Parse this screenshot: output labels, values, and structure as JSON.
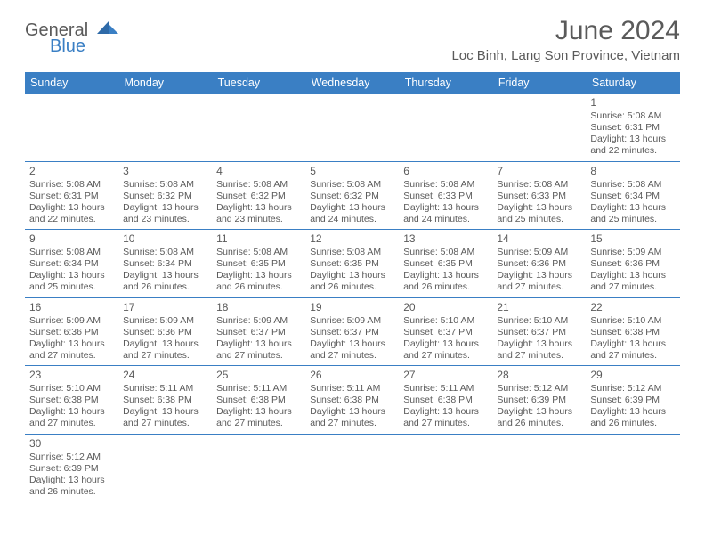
{
  "logo": {
    "text1": "General",
    "text2": "Blue"
  },
  "header": {
    "month_title": "June 2024",
    "location": "Loc Binh, Lang Son Province, Vietnam"
  },
  "colors": {
    "header_bg": "#3a7fc4",
    "text": "#5a5a5a",
    "page_bg": "#ffffff"
  },
  "weekdays": [
    "Sunday",
    "Monday",
    "Tuesday",
    "Wednesday",
    "Thursday",
    "Friday",
    "Saturday"
  ],
  "grid": [
    [
      null,
      null,
      null,
      null,
      null,
      null,
      {
        "n": "1",
        "sr": "Sunrise: 5:08 AM",
        "ss": "Sunset: 6:31 PM",
        "dl": "Daylight: 13 hours and 22 minutes."
      }
    ],
    [
      {
        "n": "2",
        "sr": "Sunrise: 5:08 AM",
        "ss": "Sunset: 6:31 PM",
        "dl": "Daylight: 13 hours and 22 minutes."
      },
      {
        "n": "3",
        "sr": "Sunrise: 5:08 AM",
        "ss": "Sunset: 6:32 PM",
        "dl": "Daylight: 13 hours and 23 minutes."
      },
      {
        "n": "4",
        "sr": "Sunrise: 5:08 AM",
        "ss": "Sunset: 6:32 PM",
        "dl": "Daylight: 13 hours and 23 minutes."
      },
      {
        "n": "5",
        "sr": "Sunrise: 5:08 AM",
        "ss": "Sunset: 6:32 PM",
        "dl": "Daylight: 13 hours and 24 minutes."
      },
      {
        "n": "6",
        "sr": "Sunrise: 5:08 AM",
        "ss": "Sunset: 6:33 PM",
        "dl": "Daylight: 13 hours and 24 minutes."
      },
      {
        "n": "7",
        "sr": "Sunrise: 5:08 AM",
        "ss": "Sunset: 6:33 PM",
        "dl": "Daylight: 13 hours and 25 minutes."
      },
      {
        "n": "8",
        "sr": "Sunrise: 5:08 AM",
        "ss": "Sunset: 6:34 PM",
        "dl": "Daylight: 13 hours and 25 minutes."
      }
    ],
    [
      {
        "n": "9",
        "sr": "Sunrise: 5:08 AM",
        "ss": "Sunset: 6:34 PM",
        "dl": "Daylight: 13 hours and 25 minutes."
      },
      {
        "n": "10",
        "sr": "Sunrise: 5:08 AM",
        "ss": "Sunset: 6:34 PM",
        "dl": "Daylight: 13 hours and 26 minutes."
      },
      {
        "n": "11",
        "sr": "Sunrise: 5:08 AM",
        "ss": "Sunset: 6:35 PM",
        "dl": "Daylight: 13 hours and 26 minutes."
      },
      {
        "n": "12",
        "sr": "Sunrise: 5:08 AM",
        "ss": "Sunset: 6:35 PM",
        "dl": "Daylight: 13 hours and 26 minutes."
      },
      {
        "n": "13",
        "sr": "Sunrise: 5:08 AM",
        "ss": "Sunset: 6:35 PM",
        "dl": "Daylight: 13 hours and 26 minutes."
      },
      {
        "n": "14",
        "sr": "Sunrise: 5:09 AM",
        "ss": "Sunset: 6:36 PM",
        "dl": "Daylight: 13 hours and 27 minutes."
      },
      {
        "n": "15",
        "sr": "Sunrise: 5:09 AM",
        "ss": "Sunset: 6:36 PM",
        "dl": "Daylight: 13 hours and 27 minutes."
      }
    ],
    [
      {
        "n": "16",
        "sr": "Sunrise: 5:09 AM",
        "ss": "Sunset: 6:36 PM",
        "dl": "Daylight: 13 hours and 27 minutes."
      },
      {
        "n": "17",
        "sr": "Sunrise: 5:09 AM",
        "ss": "Sunset: 6:36 PM",
        "dl": "Daylight: 13 hours and 27 minutes."
      },
      {
        "n": "18",
        "sr": "Sunrise: 5:09 AM",
        "ss": "Sunset: 6:37 PM",
        "dl": "Daylight: 13 hours and 27 minutes."
      },
      {
        "n": "19",
        "sr": "Sunrise: 5:09 AM",
        "ss": "Sunset: 6:37 PM",
        "dl": "Daylight: 13 hours and 27 minutes."
      },
      {
        "n": "20",
        "sr": "Sunrise: 5:10 AM",
        "ss": "Sunset: 6:37 PM",
        "dl": "Daylight: 13 hours and 27 minutes."
      },
      {
        "n": "21",
        "sr": "Sunrise: 5:10 AM",
        "ss": "Sunset: 6:37 PM",
        "dl": "Daylight: 13 hours and 27 minutes."
      },
      {
        "n": "22",
        "sr": "Sunrise: 5:10 AM",
        "ss": "Sunset: 6:38 PM",
        "dl": "Daylight: 13 hours and 27 minutes."
      }
    ],
    [
      {
        "n": "23",
        "sr": "Sunrise: 5:10 AM",
        "ss": "Sunset: 6:38 PM",
        "dl": "Daylight: 13 hours and 27 minutes."
      },
      {
        "n": "24",
        "sr": "Sunrise: 5:11 AM",
        "ss": "Sunset: 6:38 PM",
        "dl": "Daylight: 13 hours and 27 minutes."
      },
      {
        "n": "25",
        "sr": "Sunrise: 5:11 AM",
        "ss": "Sunset: 6:38 PM",
        "dl": "Daylight: 13 hours and 27 minutes."
      },
      {
        "n": "26",
        "sr": "Sunrise: 5:11 AM",
        "ss": "Sunset: 6:38 PM",
        "dl": "Daylight: 13 hours and 27 minutes."
      },
      {
        "n": "27",
        "sr": "Sunrise: 5:11 AM",
        "ss": "Sunset: 6:38 PM",
        "dl": "Daylight: 13 hours and 27 minutes."
      },
      {
        "n": "28",
        "sr": "Sunrise: 5:12 AM",
        "ss": "Sunset: 6:39 PM",
        "dl": "Daylight: 13 hours and 26 minutes."
      },
      {
        "n": "29",
        "sr": "Sunrise: 5:12 AM",
        "ss": "Sunset: 6:39 PM",
        "dl": "Daylight: 13 hours and 26 minutes."
      }
    ],
    [
      {
        "n": "30",
        "sr": "Sunrise: 5:12 AM",
        "ss": "Sunset: 6:39 PM",
        "dl": "Daylight: 13 hours and 26 minutes."
      },
      null,
      null,
      null,
      null,
      null,
      null
    ]
  ]
}
